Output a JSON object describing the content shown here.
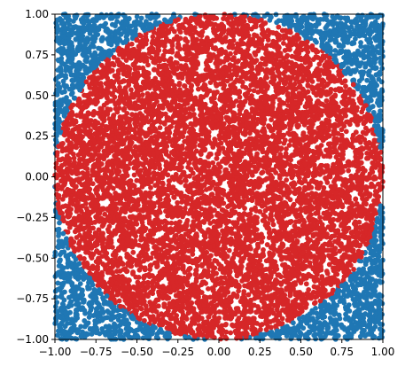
{
  "chart_data": {
    "type": "scatter",
    "title": "",
    "xlabel": "",
    "ylabel": "",
    "xlim": [
      -1.0,
      1.0
    ],
    "ylim": [
      -1.0,
      1.0
    ],
    "grid": false,
    "aspect": "equal",
    "x_ticks": [
      -1.0,
      -0.75,
      -0.5,
      -0.25,
      0.0,
      0.25,
      0.5,
      0.75,
      1.0
    ],
    "x_tick_labels": [
      "−1.00",
      "−0.75",
      "−0.50",
      "−0.25",
      "0.00",
      "0.25",
      "0.50",
      "0.75",
      "1.00"
    ],
    "y_ticks": [
      -1.0,
      -0.75,
      -0.5,
      -0.25,
      0.0,
      0.25,
      0.5,
      0.75,
      1.0
    ],
    "y_tick_labels": [
      "−1.00",
      "−0.75",
      "−0.50",
      "−0.25",
      "0.00",
      "0.25",
      "0.50",
      "0.75",
      "1.00"
    ],
    "series": [
      {
        "color": "#d62728",
        "rule": "x^2 + y^2 <= 1",
        "distribution": "uniform random points in the square [-1, 1] x [-1, 1]"
      },
      {
        "color": "#1f77b4",
        "rule": "x^2 + y^2 > 1",
        "distribution": "uniform random points in the square [-1, 1] x [-1, 1]"
      }
    ],
    "approx_point_count": 10000
  }
}
